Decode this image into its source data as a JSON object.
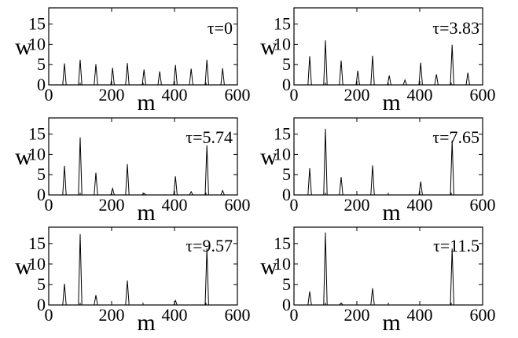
{
  "chart_data": [
    {
      "type": "line",
      "annotation": "τ=0",
      "xlabel": "m",
      "ylabel": "w",
      "xlim": [
        0,
        600
      ],
      "ylim": [
        0,
        19
      ],
      "xticks": [
        "0",
        "200",
        "400",
        "600"
      ],
      "yticks": [
        "0",
        "5",
        "10",
        "15"
      ],
      "peaks": [
        {
          "m": 50,
          "w": 5.3
        },
        {
          "m": 100,
          "w": 6.2
        },
        {
          "m": 150,
          "w": 5.1
        },
        {
          "m": 203,
          "w": 4.2
        },
        {
          "m": 250,
          "w": 5.4
        },
        {
          "m": 303,
          "w": 3.8
        },
        {
          "m": 353,
          "w": 3.3
        },
        {
          "m": 403,
          "w": 4.9
        },
        {
          "m": 453,
          "w": 4.0
        },
        {
          "m": 503,
          "w": 6.2
        },
        {
          "m": 553,
          "w": 4.1
        }
      ]
    },
    {
      "type": "line",
      "annotation": "τ=3.83",
      "xlabel": "m",
      "ylabel": "w",
      "xlim": [
        0,
        600
      ],
      "ylim": [
        0,
        19
      ],
      "xticks": [
        "0",
        "200",
        "400",
        "600"
      ],
      "yticks": [
        "0",
        "5",
        "10",
        "15"
      ],
      "peaks": [
        {
          "m": 50,
          "w": 7.1
        },
        {
          "m": 100,
          "w": 11.0
        },
        {
          "m": 150,
          "w": 6.0
        },
        {
          "m": 203,
          "w": 3.5
        },
        {
          "m": 250,
          "w": 7.2
        },
        {
          "m": 303,
          "w": 2.3
        },
        {
          "m": 353,
          "w": 1.2
        },
        {
          "m": 403,
          "w": 5.5
        },
        {
          "m": 453,
          "w": 2.6
        },
        {
          "m": 503,
          "w": 9.9
        },
        {
          "m": 553,
          "w": 3.0
        }
      ]
    },
    {
      "type": "line",
      "annotation": "τ=5.74",
      "xlabel": "m",
      "ylabel": "w",
      "xlim": [
        0,
        600
      ],
      "ylim": [
        0,
        19
      ],
      "xticks": [
        "0",
        "200",
        "400",
        "600"
      ],
      "yticks": [
        "0",
        "5",
        "10",
        "15"
      ],
      "peaks": [
        {
          "m": 50,
          "w": 7.2
        },
        {
          "m": 100,
          "w": 14.2
        },
        {
          "m": 150,
          "w": 5.5
        },
        {
          "m": 203,
          "w": 1.6
        },
        {
          "m": 250,
          "w": 7.6
        },
        {
          "m": 303,
          "w": 0.4
        },
        {
          "m": 403,
          "w": 4.6
        },
        {
          "m": 453,
          "w": 0.8
        },
        {
          "m": 503,
          "w": 12.2
        },
        {
          "m": 553,
          "w": 1.1
        }
      ]
    },
    {
      "type": "line",
      "annotation": "τ=7.65",
      "xlabel": "m",
      "ylabel": "w",
      "xlim": [
        0,
        600
      ],
      "ylim": [
        0,
        19
      ],
      "xticks": [
        "0",
        "200",
        "400",
        "600"
      ],
      "yticks": [
        "0",
        "5",
        "10",
        "15"
      ],
      "peaks": [
        {
          "m": 50,
          "w": 6.6
        },
        {
          "m": 100,
          "w": 16.3
        },
        {
          "m": 150,
          "w": 4.4
        },
        {
          "m": 250,
          "w": 7.3
        },
        {
          "m": 403,
          "w": 3.3
        },
        {
          "m": 503,
          "w": 13.4
        }
      ]
    },
    {
      "type": "line",
      "annotation": "τ=9.57",
      "xlabel": "m",
      "ylabel": "w",
      "xlim": [
        0,
        600
      ],
      "ylim": [
        0,
        19
      ],
      "xticks": [
        "0",
        "200",
        "400",
        "600"
      ],
      "yticks": [
        "0",
        "5",
        "10",
        "15"
      ],
      "peaks": [
        {
          "m": 50,
          "w": 5.2
        },
        {
          "m": 100,
          "w": 17.3
        },
        {
          "m": 150,
          "w": 2.4
        },
        {
          "m": 250,
          "w": 6.0
        },
        {
          "m": 403,
          "w": 1.1
        },
        {
          "m": 503,
          "w": 13.8
        }
      ]
    },
    {
      "type": "line",
      "annotation": "τ=11.5",
      "xlabel": "m",
      "ylabel": "w",
      "xlim": [
        0,
        600
      ],
      "ylim": [
        0,
        19
      ],
      "xticks": [
        "0",
        "200",
        "400",
        "600"
      ],
      "yticks": [
        "0",
        "5",
        "10",
        "15"
      ],
      "peaks": [
        {
          "m": 50,
          "w": 3.3
        },
        {
          "m": 100,
          "w": 17.7
        },
        {
          "m": 150,
          "w": 0.5
        },
        {
          "m": 250,
          "w": 4.1
        },
        {
          "m": 503,
          "w": 13.8
        }
      ]
    }
  ]
}
